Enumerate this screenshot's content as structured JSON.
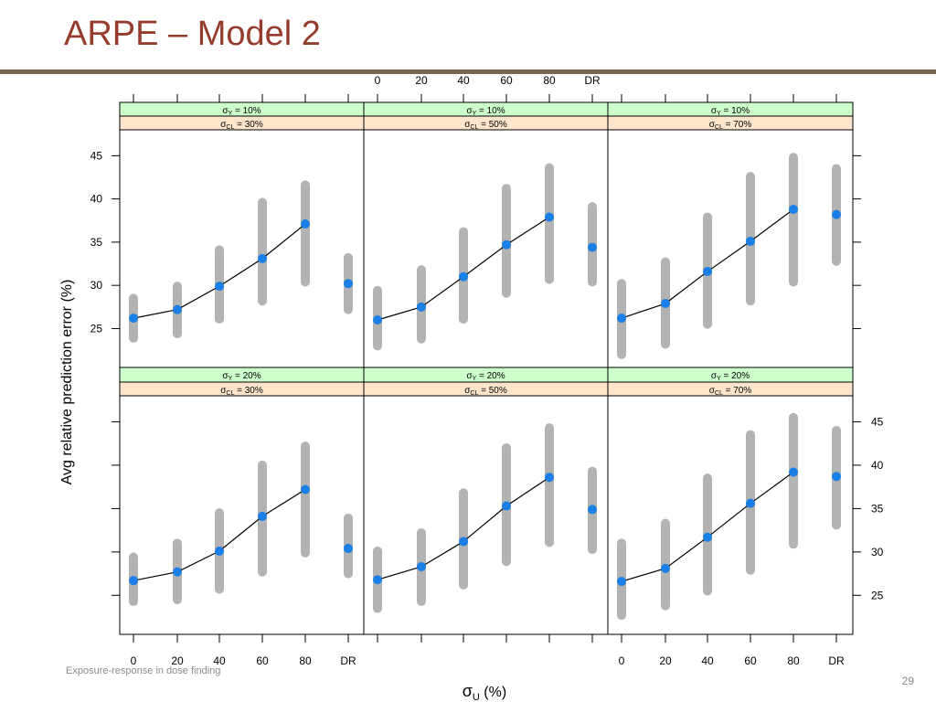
{
  "slide": {
    "title": "ARPE – Model 2",
    "footer": "Exposure-response in dose finding",
    "page_number": "29"
  },
  "colors": {
    "title": "#963c2c",
    "rule": "#7a6650",
    "strip_top": "#ccffcc",
    "strip_bottom": "#ffe5cc",
    "range_bar": "#b3b3b3",
    "point": "#1a7fe6",
    "line": "#000000"
  },
  "chart_data": {
    "type": "line",
    "layout": "2x3 lattice panels with error ranges",
    "xlabel_symbol": "σ",
    "xlabel_sub": "U",
    "xlabel_rest": " (%)",
    "ylabel": "Avg relative prediction error (%)",
    "categories": [
      "0",
      "20",
      "40",
      "60",
      "80",
      "DR"
    ],
    "y_ticks": [
      25,
      30,
      35,
      40,
      45
    ],
    "ylim": [
      20.5,
      48.0
    ],
    "line_connects_first_n": 5,
    "panels": [
      {
        "strip_top": {
          "sym": "σ",
          "sub": "Y",
          "val": "10%"
        },
        "strip_bottom": {
          "sym": "σ",
          "sub": "CL",
          "val": "30%"
        },
        "means": [
          26.2,
          27.2,
          29.9,
          33.1,
          37.1,
          30.2
        ],
        "low": [
          23.9,
          24.4,
          26.1,
          28.2,
          30.4,
          27.2
        ],
        "high": [
          28.5,
          29.9,
          34.1,
          39.6,
          41.6,
          33.2
        ]
      },
      {
        "strip_top": {
          "sym": "σ",
          "sub": "Y",
          "val": "10%"
        },
        "strip_bottom": {
          "sym": "σ",
          "sub": "CL",
          "val": "50%"
        },
        "means": [
          26.0,
          27.5,
          31.0,
          34.7,
          37.9,
          34.4
        ],
        "low": [
          23.0,
          23.8,
          26.1,
          29.1,
          30.7,
          30.4
        ],
        "high": [
          29.4,
          31.8,
          36.2,
          41.2,
          43.6,
          39.1
        ]
      },
      {
        "strip_top": {
          "sym": "σ",
          "sub": "Y",
          "val": "10%"
        },
        "strip_bottom": {
          "sym": "σ",
          "sub": "CL",
          "val": "70%"
        },
        "means": [
          26.2,
          27.9,
          31.6,
          35.1,
          38.8,
          38.2
        ],
        "low": [
          22.0,
          23.2,
          25.5,
          28.2,
          30.4,
          32.8
        ],
        "high": [
          30.2,
          32.7,
          37.9,
          42.6,
          44.8,
          43.5
        ]
      },
      {
        "strip_top": {
          "sym": "σ",
          "sub": "Y",
          "val": "20%"
        },
        "strip_bottom": {
          "sym": "σ",
          "sub": "CL",
          "val": "30%"
        },
        "means": [
          26.7,
          27.7,
          30.1,
          34.1,
          37.2,
          30.4
        ],
        "low": [
          24.3,
          24.5,
          25.7,
          27.7,
          29.9,
          27.5
        ],
        "high": [
          29.4,
          31.0,
          34.5,
          40.0,
          42.2,
          33.9
        ]
      },
      {
        "strip_top": {
          "sym": "σ",
          "sub": "Y",
          "val": "20%"
        },
        "strip_bottom": {
          "sym": "σ",
          "sub": "CL",
          "val": "50%"
        },
        "means": [
          26.8,
          28.3,
          31.2,
          35.3,
          38.6,
          34.9
        ],
        "low": [
          23.5,
          24.3,
          26.2,
          28.9,
          31.1,
          30.3
        ],
        "high": [
          30.1,
          32.2,
          36.8,
          42.0,
          44.3,
          39.3
        ]
      },
      {
        "strip_top": {
          "sym": "σ",
          "sub": "Y",
          "val": "20%"
        },
        "strip_bottom": {
          "sym": "σ",
          "sub": "CL",
          "val": "70%"
        },
        "means": [
          26.6,
          28.1,
          31.7,
          35.6,
          39.2,
          38.7
        ],
        "low": [
          22.7,
          23.8,
          25.5,
          27.9,
          30.9,
          33.1
        ],
        "high": [
          31.0,
          33.3,
          38.5,
          43.5,
          45.5,
          44.0
        ]
      }
    ]
  }
}
